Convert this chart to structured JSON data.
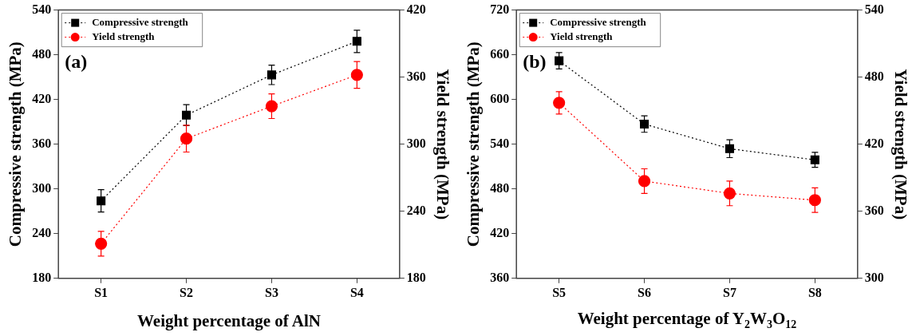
{
  "chart_data": [
    {
      "type": "line",
      "categories": [
        "S1",
        "S2",
        "S3",
        "S4"
      ],
      "xlabel": "Weight percentage of AlN",
      "ylabel": "Compressive strength (MPa)",
      "y2label": "Yield strength (MPa)",
      "ylim": [
        180,
        540
      ],
      "yticks": [
        180,
        240,
        300,
        360,
        420,
        480,
        540
      ],
      "y2lim": [
        180,
        420
      ],
      "y2ticks": [
        180,
        240,
        300,
        360,
        420
      ],
      "legend": "top left",
      "line_style": "dotted",
      "grid": false,
      "annotations": [
        "(a)"
      ],
      "series": [
        {
          "name": "Compressive strength",
          "color": "#000000",
          "marker": "square",
          "values": [
            284,
            399,
            453,
            498
          ],
          "errors": [
            15,
            14,
            13,
            15
          ]
        },
        {
          "name": "Yield strength",
          "color": "#ff0000",
          "marker": "circle",
          "axis": "y2",
          "values": [
            211,
            305,
            334,
            362
          ],
          "errors": [
            11,
            12,
            11,
            12
          ]
        }
      ]
    },
    {
      "type": "line",
      "categories": [
        "S5",
        "S6",
        "S7",
        "S8"
      ],
      "xlabel": "Weight percentage of Y$_{2}$W$_{3}$O$_{12}$",
      "ylabel": "Compressive strength (MPa)",
      "y2label": "Yield strength (MPa)",
      "ylim": [
        360,
        720
      ],
      "yticks": [
        360,
        420,
        480,
        540,
        600,
        660,
        720
      ],
      "y2lim": [
        300,
        540
      ],
      "y2ticks": [
        300,
        360,
        420,
        480,
        540
      ],
      "legend": "top left",
      "line_style": "dotted",
      "grid": false,
      "annotations": [
        "(b)"
      ],
      "series": [
        {
          "name": "Compressive strength",
          "color": "#000000",
          "marker": "square",
          "values": [
            652,
            567,
            534,
            519
          ],
          "errors": [
            11,
            11,
            12,
            10
          ]
        },
        {
          "name": "Yield strength",
          "color": "#ff0000",
          "marker": "circle",
          "axis": "y2",
          "values": [
            457,
            387,
            376,
            370
          ],
          "errors": [
            10,
            11,
            11,
            11
          ]
        }
      ]
    }
  ]
}
